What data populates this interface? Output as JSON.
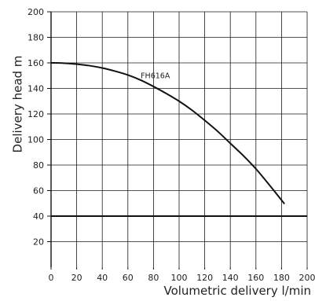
{
  "chart_data": {
    "type": "line",
    "title": "",
    "xlabel": "Volumetric delivery l/min",
    "ylabel": "Delivery head m",
    "xlim": [
      0,
      200
    ],
    "ylim": [
      0,
      200
    ],
    "x_ticks": [
      0,
      20,
      40,
      60,
      80,
      100,
      120,
      140,
      160,
      180,
      200
    ],
    "y_ticks": [
      20,
      40,
      60,
      80,
      100,
      120,
      140,
      160,
      180,
      200
    ],
    "grid": true,
    "reference_line": {
      "y": 40,
      "color": "#111111"
    },
    "series": [
      {
        "name": "FH616A",
        "color": "#111111",
        "x": [
          0,
          10,
          20,
          30,
          40,
          50,
          60,
          70,
          80,
          90,
          100,
          110,
          120,
          130,
          140,
          150,
          160,
          170,
          182
        ],
        "y": [
          160,
          159.8,
          159,
          157.8,
          156,
          153.5,
          150.5,
          146.5,
          141.5,
          136,
          130,
          123,
          115,
          106.5,
          97,
          87.5,
          77,
          65,
          50
        ]
      }
    ]
  }
}
